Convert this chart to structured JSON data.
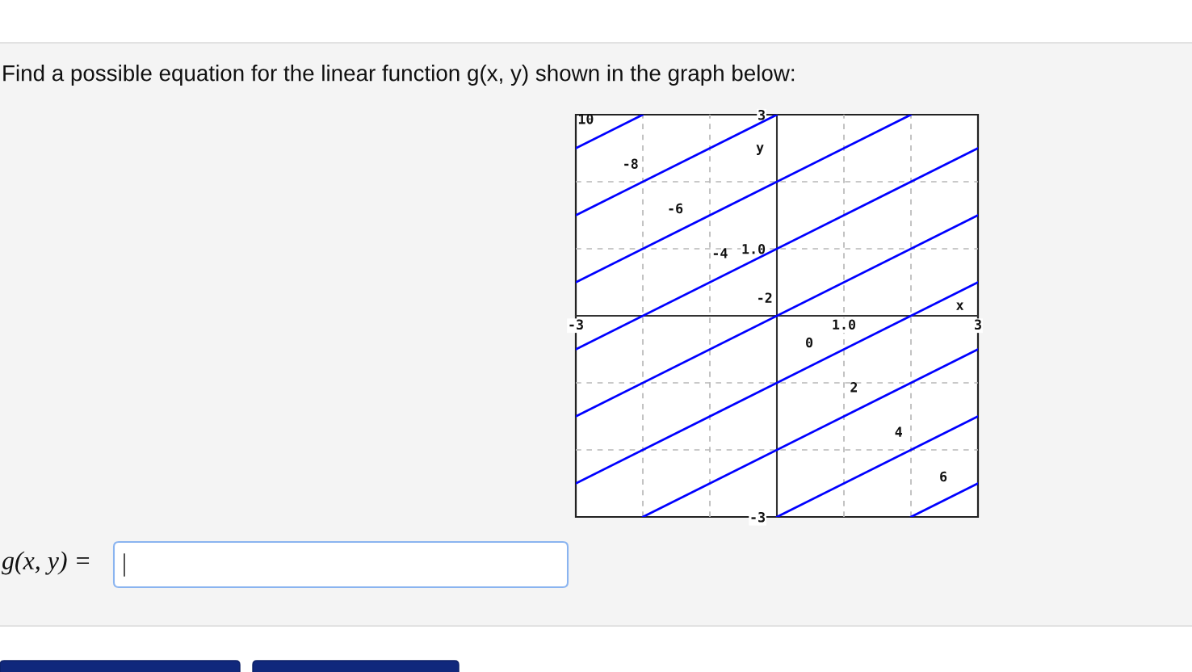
{
  "chart_data": {
    "type": "line",
    "title": "Find a possible equation for the linear function g(x, y) shown in the graph below:",
    "xlabel": "x",
    "ylabel": "y",
    "annotations": [
      "g(x, y) ="
    ],
    "xlim": [
      -3,
      3
    ],
    "ylim": [
      -3,
      3
    ],
    "xticks": [
      -3,
      {
        "value": -2,
        "label": null
      },
      {
        "value": -1,
        "label": null
      },
      {
        "value": 0,
        "label": null
      },
      {
        "value": 1,
        "label": "1.0"
      },
      {
        "value": 2,
        "label": null
      },
      3
    ],
    "yticks": [
      -3,
      {
        "value": -2,
        "label": null
      },
      {
        "value": -1,
        "label": null
      },
      {
        "value": 0,
        "label": null
      },
      {
        "value": 1,
        "label": "1.0"
      },
      {
        "value": 2,
        "label": null
      },
      3
    ],
    "grid": true,
    "series": [
      {
        "name": "10",
        "color": "#0000ff",
        "x": [
          -3,
          -2
        ],
        "values": [
          2.5,
          3
        ]
      },
      {
        "name": "-8",
        "color": "#0000ff",
        "x": [
          -3,
          0
        ],
        "values": [
          1.5,
          3
        ]
      },
      {
        "name": "-6",
        "color": "#0000ff",
        "x": [
          -3,
          2
        ],
        "values": [
          0.5,
          3
        ]
      },
      {
        "name": "-4",
        "color": "#0000ff",
        "x": [
          -3,
          3
        ],
        "values": [
          -0.5,
          2.5
        ]
      },
      {
        "name": "-2",
        "color": "#0000ff",
        "x": [
          -3,
          3
        ],
        "values": [
          -1.5,
          1.5
        ]
      },
      {
        "name": "0",
        "color": "#0000ff",
        "x": [
          -3,
          3
        ],
        "values": [
          -2.5,
          0.5
        ]
      },
      {
        "name": "2",
        "color": "#0000ff",
        "x": [
          -2,
          3
        ],
        "values": [
          -3,
          -0.5
        ]
      },
      {
        "name": "4",
        "color": "#0000ff",
        "x": [
          0,
          3
        ],
        "values": [
          -3,
          -1.5
        ]
      },
      {
        "name": "6",
        "color": "#0000ff",
        "x": [
          2,
          3
        ],
        "values": [
          -3,
          -2.5
        ]
      }
    ]
  }
}
